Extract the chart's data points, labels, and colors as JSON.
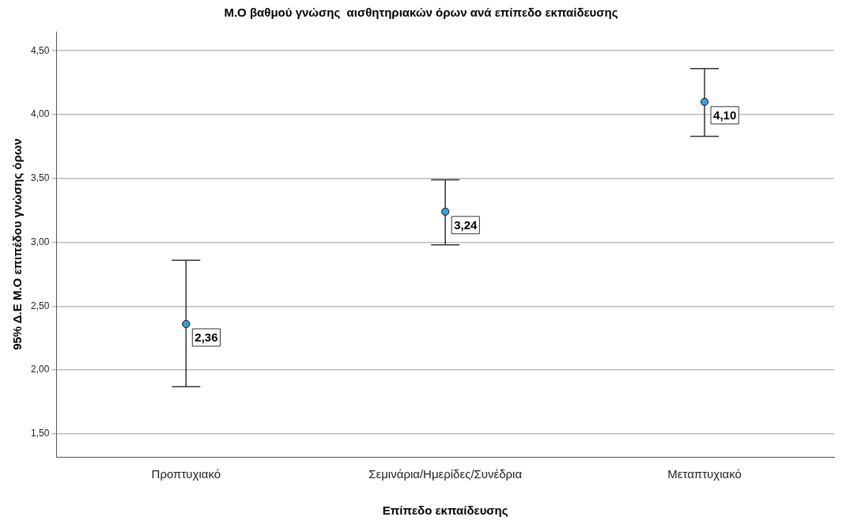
{
  "chart_data": {
    "type": "scatter",
    "title": "Μ.Ο βαθμού γνώσης  αισθητηριακών όρων ανά επίπεδο εκπαίδευσης",
    "xlabel": "Επίπεδο εκπαίδευσης",
    "ylabel": "95% Δ.Ε Μ.Ο επιπέδου γνώσης όρων",
    "categories": [
      "Προπτυχιακό",
      "Σεμινάρια/Ημερίδες/Συνέδρια",
      "Μεταπτυχιακό"
    ],
    "values": [
      2.36,
      3.24,
      4.1
    ],
    "errors": [
      [
        1.87,
        2.86
      ],
      [
        2.98,
        3.49
      ],
      [
        3.83,
        4.36
      ]
    ],
    "value_labels": [
      "2,36",
      "3,24",
      "4,10"
    ],
    "color": "#3b9ddd",
    "marker": "circle",
    "ylim": [
      1.32,
      4.65
    ],
    "yticks": [
      {
        "value": 1.5,
        "label": "1,50"
      },
      {
        "value": 2.0,
        "label": "2,00"
      },
      {
        "value": 2.5,
        "label": "2,50"
      },
      {
        "value": 3.0,
        "label": "3,00"
      },
      {
        "value": 3.5,
        "label": "3,50"
      },
      {
        "value": 4.0,
        "label": "4,00"
      },
      {
        "value": 4.5,
        "label": "4,50"
      }
    ],
    "grid": "y"
  }
}
